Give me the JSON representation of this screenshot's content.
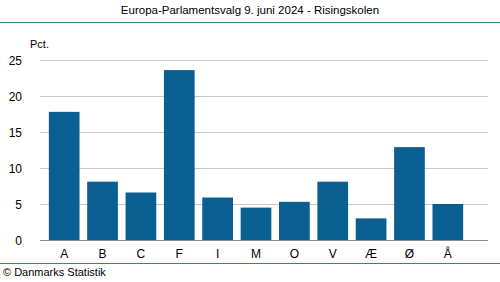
{
  "chart_data": {
    "type": "bar",
    "title": "Europa-Parlamentsvalg 9. juni 2024 - Risingskolen",
    "y_label": "Pct.",
    "source": "© Danmarks Statistik",
    "categories": [
      "A",
      "B",
      "C",
      "F",
      "I",
      "M",
      "O",
      "V",
      "Æ",
      "Ø",
      "Å"
    ],
    "values": [
      17.8,
      8.1,
      6.6,
      23.6,
      5.9,
      4.5,
      5.3,
      8.1,
      3.0,
      12.9,
      5.0
    ],
    "color": "#0b5f93",
    "ylim": [
      0,
      25
    ],
    "yticks": [
      0,
      5,
      10,
      15,
      20,
      25
    ],
    "grid": true
  }
}
